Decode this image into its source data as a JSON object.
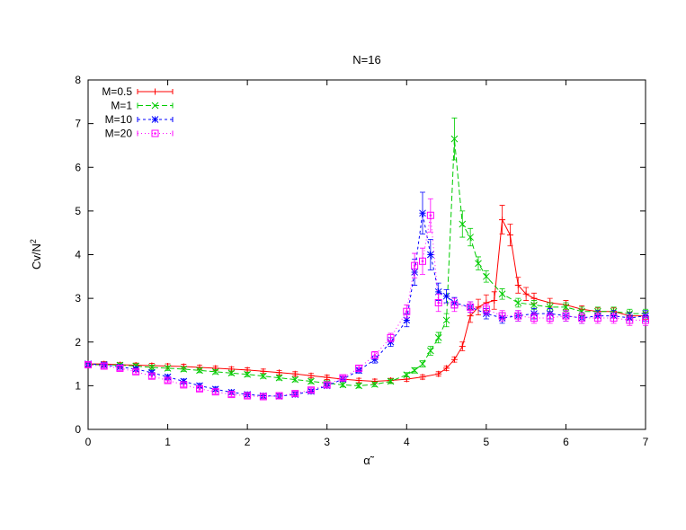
{
  "chart_data": {
    "type": "line",
    "title": "N=16",
    "xlabel": "α̃",
    "ylabel_base": "Cv/N",
    "ylabel_sup": "2",
    "xlim": [
      0,
      7
    ],
    "ylim": [
      0,
      8
    ],
    "xticks": [
      "0",
      "1",
      "2",
      "3",
      "4",
      "5",
      "6",
      "7"
    ],
    "yticks": [
      "0",
      "1",
      "2",
      "3",
      "4",
      "5",
      "6",
      "7",
      "8"
    ],
    "legend_position": "top-left",
    "grid": false,
    "series": [
      {
        "name": "M=0.5",
        "color": "#ff0000",
        "marker": "plus",
        "x": [
          0,
          0.2,
          0.4,
          0.6,
          0.8,
          1.0,
          1.2,
          1.4,
          1.6,
          1.8,
          2.0,
          2.2,
          2.4,
          2.6,
          2.8,
          3.0,
          3.2,
          3.4,
          3.6,
          3.8,
          4.0,
          4.2,
          4.4,
          4.5,
          4.6,
          4.7,
          4.8,
          4.9,
          5.0,
          5.1,
          5.2,
          5.3,
          5.4,
          5.5,
          5.6,
          5.8,
          6.0,
          6.2,
          6.4,
          6.6,
          6.8,
          7.0
        ],
        "y": [
          1.5,
          1.5,
          1.48,
          1.47,
          1.46,
          1.45,
          1.44,
          1.42,
          1.4,
          1.38,
          1.36,
          1.33,
          1.3,
          1.27,
          1.23,
          1.19,
          1.15,
          1.12,
          1.1,
          1.12,
          1.15,
          1.2,
          1.27,
          1.4,
          1.6,
          1.9,
          2.6,
          2.8,
          2.9,
          2.95,
          4.8,
          4.45,
          3.3,
          3.1,
          3.0,
          2.9,
          2.85,
          2.75,
          2.7,
          2.7,
          2.6,
          2.6
        ],
        "err": [
          0.05,
          0.05,
          0.05,
          0.05,
          0.05,
          0.05,
          0.05,
          0.05,
          0.05,
          0.05,
          0.05,
          0.05,
          0.05,
          0.05,
          0.05,
          0.05,
          0.05,
          0.05,
          0.05,
          0.05,
          0.05,
          0.05,
          0.05,
          0.05,
          0.06,
          0.1,
          0.15,
          0.18,
          0.18,
          0.2,
          0.33,
          0.25,
          0.18,
          0.15,
          0.12,
          0.1,
          0.1,
          0.08,
          0.08,
          0.08,
          0.08,
          0.08
        ]
      },
      {
        "name": "M=1",
        "color": "#00cc00",
        "marker": "x",
        "x": [
          0,
          0.2,
          0.4,
          0.6,
          0.8,
          1.0,
          1.2,
          1.4,
          1.6,
          1.8,
          2.0,
          2.2,
          2.4,
          2.6,
          2.8,
          3.0,
          3.2,
          3.4,
          3.6,
          3.8,
          4.0,
          4.1,
          4.2,
          4.3,
          4.4,
          4.5,
          4.6,
          4.7,
          4.8,
          4.9,
          5.0,
          5.2,
          5.4,
          5.6,
          5.8,
          6.0,
          6.2,
          6.4,
          6.6,
          6.8,
          7.0
        ],
        "y": [
          1.48,
          1.48,
          1.47,
          1.45,
          1.42,
          1.4,
          1.38,
          1.35,
          1.32,
          1.29,
          1.26,
          1.22,
          1.18,
          1.14,
          1.1,
          1.06,
          1.02,
          1.0,
          1.03,
          1.1,
          1.25,
          1.35,
          1.5,
          1.8,
          2.1,
          2.5,
          6.65,
          4.7,
          4.4,
          3.8,
          3.5,
          3.1,
          2.9,
          2.85,
          2.8,
          2.8,
          2.7,
          2.7,
          2.7,
          2.65,
          2.65
        ],
        "err": [
          0.05,
          0.05,
          0.05,
          0.05,
          0.05,
          0.05,
          0.05,
          0.05,
          0.05,
          0.05,
          0.05,
          0.05,
          0.05,
          0.05,
          0.05,
          0.05,
          0.05,
          0.05,
          0.05,
          0.05,
          0.05,
          0.06,
          0.07,
          0.1,
          0.12,
          0.15,
          0.48,
          0.3,
          0.2,
          0.15,
          0.13,
          0.12,
          0.1,
          0.1,
          0.1,
          0.1,
          0.1,
          0.1,
          0.1,
          0.1,
          0.1
        ]
      },
      {
        "name": "M=10",
        "color": "#0000ff",
        "marker": "star",
        "x": [
          0,
          0.2,
          0.4,
          0.6,
          0.8,
          1.0,
          1.2,
          1.4,
          1.6,
          1.8,
          2.0,
          2.2,
          2.4,
          2.6,
          2.8,
          3.0,
          3.2,
          3.4,
          3.6,
          3.8,
          4.0,
          4.1,
          4.2,
          4.3,
          4.4,
          4.5,
          4.6,
          4.8,
          5.0,
          5.2,
          5.4,
          5.6,
          5.8,
          6.0,
          6.2,
          6.4,
          6.6,
          6.8,
          7.0
        ],
        "y": [
          1.5,
          1.48,
          1.43,
          1.38,
          1.3,
          1.2,
          1.1,
          1.0,
          0.92,
          0.85,
          0.8,
          0.77,
          0.76,
          0.8,
          0.87,
          1.0,
          1.15,
          1.35,
          1.6,
          2.0,
          2.5,
          3.6,
          4.95,
          4.0,
          3.15,
          3.05,
          2.9,
          2.8,
          2.65,
          2.55,
          2.6,
          2.65,
          2.65,
          2.6,
          2.55,
          2.6,
          2.6,
          2.55,
          2.6
        ],
        "err": [
          0.05,
          0.05,
          0.05,
          0.05,
          0.05,
          0.05,
          0.05,
          0.05,
          0.05,
          0.05,
          0.05,
          0.05,
          0.05,
          0.05,
          0.05,
          0.05,
          0.05,
          0.06,
          0.08,
          0.1,
          0.15,
          0.3,
          0.48,
          0.35,
          0.2,
          0.15,
          0.12,
          0.12,
          0.12,
          0.12,
          0.12,
          0.12,
          0.12,
          0.12,
          0.12,
          0.12,
          0.12,
          0.12,
          0.12
        ]
      },
      {
        "name": "M=20",
        "color": "#ff00ff",
        "marker": "square",
        "x": [
          0,
          0.2,
          0.4,
          0.6,
          0.8,
          1.0,
          1.2,
          1.4,
          1.6,
          1.8,
          2.0,
          2.2,
          2.4,
          2.6,
          2.8,
          3.0,
          3.2,
          3.4,
          3.6,
          3.8,
          4.0,
          4.1,
          4.2,
          4.3,
          4.4,
          4.6,
          4.8,
          5.0,
          5.2,
          5.4,
          5.6,
          5.8,
          6.0,
          6.2,
          6.4,
          6.6,
          6.8,
          7.0
        ],
        "y": [
          1.48,
          1.45,
          1.4,
          1.32,
          1.22,
          1.12,
          1.02,
          0.93,
          0.86,
          0.8,
          0.77,
          0.75,
          0.77,
          0.82,
          0.9,
          1.02,
          1.18,
          1.4,
          1.7,
          2.1,
          2.7,
          3.75,
          3.85,
          4.9,
          2.9,
          2.85,
          2.8,
          2.75,
          2.6,
          2.6,
          2.55,
          2.55,
          2.6,
          2.55,
          2.55,
          2.55,
          2.5,
          2.5
        ],
        "err": [
          0.05,
          0.05,
          0.05,
          0.05,
          0.05,
          0.05,
          0.05,
          0.05,
          0.05,
          0.05,
          0.05,
          0.05,
          0.05,
          0.05,
          0.05,
          0.05,
          0.05,
          0.06,
          0.08,
          0.1,
          0.15,
          0.28,
          0.3,
          0.38,
          0.2,
          0.15,
          0.12,
          0.12,
          0.12,
          0.12,
          0.12,
          0.12,
          0.12,
          0.12,
          0.12,
          0.12,
          0.12,
          0.12
        ]
      }
    ]
  }
}
